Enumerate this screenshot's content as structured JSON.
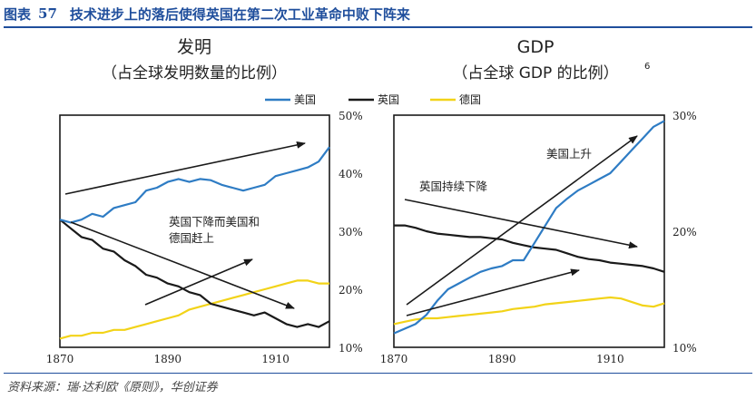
{
  "figure": {
    "label": "图表",
    "number": "57",
    "title": "技术进步上的落后使得英国在第二次工业革命中败下阵来"
  },
  "source": "资料来源：瑞·达利欧《原则》，华创证券",
  "legend": [
    {
      "name": "美国",
      "color": "#2e7cc4"
    },
    {
      "name": "英国",
      "color": "#1a1a1a"
    },
    {
      "name": "德国",
      "color": "#f2d318"
    }
  ],
  "chart_data": [
    {
      "type": "line",
      "title": "发明",
      "subtitle": "（占全球发明数量的比例）",
      "xlim": [
        1870,
        1920
      ],
      "ylim": [
        0.1,
        0.5
      ],
      "x_ticks": [
        "1870",
        "1890",
        "1910"
      ],
      "y_ticks": [
        "50%",
        "40%",
        "30%",
        "20%",
        "10%"
      ],
      "y_axis_side": "right",
      "series": [
        {
          "name": "美国",
          "color": "#2e7cc4",
          "x": [
            1870,
            1872,
            1874,
            1876,
            1878,
            1880,
            1882,
            1884,
            1886,
            1888,
            1890,
            1892,
            1894,
            1896,
            1898,
            1900,
            1902,
            1904,
            1906,
            1908,
            1910,
            1912,
            1914,
            1916,
            1918,
            1920
          ],
          "y": [
            0.32,
            0.315,
            0.32,
            0.33,
            0.325,
            0.34,
            0.345,
            0.35,
            0.37,
            0.375,
            0.385,
            0.39,
            0.385,
            0.39,
            0.388,
            0.38,
            0.375,
            0.37,
            0.375,
            0.38,
            0.395,
            0.4,
            0.405,
            0.41,
            0.42,
            0.445
          ]
        },
        {
          "name": "英国",
          "color": "#1a1a1a",
          "x": [
            1870,
            1872,
            1874,
            1876,
            1878,
            1880,
            1882,
            1884,
            1886,
            1888,
            1890,
            1892,
            1894,
            1896,
            1898,
            1900,
            1902,
            1904,
            1906,
            1908,
            1910,
            1912,
            1914,
            1916,
            1918,
            1920
          ],
          "y": [
            0.32,
            0.305,
            0.29,
            0.285,
            0.27,
            0.265,
            0.25,
            0.24,
            0.225,
            0.22,
            0.21,
            0.205,
            0.195,
            0.19,
            0.175,
            0.17,
            0.165,
            0.16,
            0.155,
            0.16,
            0.15,
            0.14,
            0.135,
            0.14,
            0.135,
            0.145
          ]
        },
        {
          "name": "德国",
          "color": "#f2d318",
          "x": [
            1870,
            1872,
            1874,
            1876,
            1878,
            1880,
            1882,
            1884,
            1886,
            1888,
            1890,
            1892,
            1894,
            1896,
            1898,
            1900,
            1902,
            1904,
            1906,
            1908,
            1910,
            1912,
            1914,
            1916,
            1918,
            1920
          ],
          "y": [
            0.115,
            0.12,
            0.12,
            0.125,
            0.125,
            0.13,
            0.13,
            0.135,
            0.14,
            0.145,
            0.15,
            0.155,
            0.165,
            0.17,
            0.175,
            0.18,
            0.185,
            0.19,
            0.195,
            0.2,
            0.205,
            0.21,
            0.215,
            0.215,
            0.21,
            0.21
          ]
        }
      ],
      "annotations": [
        {
          "lines": [
            "英国下降而美国和",
            "德国赶上"
          ]
        }
      ]
    },
    {
      "type": "line",
      "title": "GDP",
      "subtitle": "（占全球 GDP 的比例）",
      "title_superscript": "6",
      "xlim": [
        1870,
        1920
      ],
      "ylim": [
        0.1,
        0.3
      ],
      "x_ticks": [
        "1870",
        "1890",
        "1910"
      ],
      "y_ticks": [
        "30%",
        "20%",
        "10%"
      ],
      "y_axis_side": "right",
      "series": [
        {
          "name": "美国",
          "color": "#2e7cc4",
          "x": [
            1870,
            1872,
            1874,
            1876,
            1878,
            1880,
            1882,
            1884,
            1886,
            1888,
            1890,
            1892,
            1894,
            1896,
            1898,
            1900,
            1902,
            1904,
            1906,
            1908,
            1910,
            1912,
            1914,
            1916,
            1918,
            1920
          ],
          "y": [
            0.112,
            0.116,
            0.12,
            0.128,
            0.14,
            0.15,
            0.155,
            0.16,
            0.165,
            0.168,
            0.17,
            0.175,
            0.175,
            0.19,
            0.205,
            0.22,
            0.228,
            0.235,
            0.24,
            0.245,
            0.25,
            0.26,
            0.27,
            0.28,
            0.29,
            0.295
          ]
        },
        {
          "name": "英国",
          "color": "#1a1a1a",
          "x": [
            1870,
            1872,
            1874,
            1876,
            1878,
            1880,
            1882,
            1884,
            1886,
            1888,
            1890,
            1892,
            1894,
            1896,
            1898,
            1900,
            1902,
            1904,
            1906,
            1908,
            1910,
            1912,
            1914,
            1916,
            1918,
            1920
          ],
          "y": [
            0.205,
            0.205,
            0.203,
            0.2,
            0.198,
            0.197,
            0.196,
            0.195,
            0.195,
            0.194,
            0.193,
            0.19,
            0.188,
            0.186,
            0.185,
            0.184,
            0.181,
            0.178,
            0.176,
            0.175,
            0.173,
            0.172,
            0.171,
            0.17,
            0.168,
            0.165
          ]
        },
        {
          "name": "德国",
          "color": "#f2d318",
          "x": [
            1870,
            1872,
            1874,
            1876,
            1878,
            1880,
            1882,
            1884,
            1886,
            1888,
            1890,
            1892,
            1894,
            1896,
            1898,
            1900,
            1902,
            1904,
            1906,
            1908,
            1910,
            1912,
            1914,
            1916,
            1918,
            1920
          ],
          "y": [
            0.12,
            0.122,
            0.124,
            0.125,
            0.125,
            0.126,
            0.127,
            0.128,
            0.129,
            0.13,
            0.131,
            0.133,
            0.134,
            0.135,
            0.137,
            0.138,
            0.139,
            0.14,
            0.141,
            0.142,
            0.143,
            0.142,
            0.139,
            0.136,
            0.135,
            0.138
          ]
        }
      ],
      "annotations": [
        {
          "lines": [
            "美国上升"
          ]
        },
        {
          "lines": [
            "英国持续下降"
          ]
        }
      ]
    }
  ]
}
